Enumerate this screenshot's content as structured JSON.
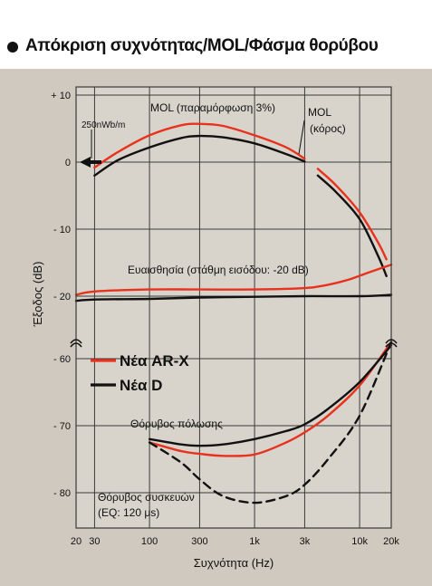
{
  "header": {
    "title": "Απόκριση συχνότητας/MOL/Φάσμα θορύβου"
  },
  "colors": {
    "panel_background": "#cfc9bf",
    "plot_background": "#d8d4cb",
    "grid": "#3a3a3a",
    "series_red": "#e8321e",
    "series_black": "#111111",
    "dashed_black": "#111111"
  },
  "chart_data": {
    "type": "line",
    "x_scale": "log",
    "xlabel": "Συχνότητα (Hz)",
    "ylabel": "Έξοδος (dB)",
    "x_ticks": [
      {
        "value": 20,
        "label": "20"
      },
      {
        "value": 30,
        "label": "30"
      },
      {
        "value": 100,
        "label": "100"
      },
      {
        "value": 300,
        "label": "300"
      },
      {
        "value": 1000,
        "label": "1k"
      },
      {
        "value": 3000,
        "label": "3k"
      },
      {
        "value": 10000,
        "label": "10k"
      },
      {
        "value": 20000,
        "label": "20k"
      }
    ],
    "xlim": [
      20,
      20000
    ],
    "y_axis_segments": [
      {
        "range": [
          -22,
          12
        ],
        "ticks": [
          {
            "value": 10,
            "label": "+ 10"
          },
          {
            "value": 0,
            "label": "0"
          },
          {
            "value": -10,
            "label": "- 10"
          },
          {
            "value": -20,
            "label": "- 20"
          }
        ]
      },
      {
        "range": [
          -85,
          -55
        ],
        "ticks": [
          {
            "value": -60,
            "label": "- 60"
          },
          {
            "value": -70,
            "label": "- 70"
          },
          {
            "value": -80,
            "label": "- 80"
          }
        ]
      }
    ],
    "grid": true,
    "legend": {
      "position": "middle-left",
      "entries": [
        {
          "label": "Νέα AR-X",
          "color": "#e8321e"
        },
        {
          "label": "Νέα D",
          "color": "#111111"
        }
      ]
    },
    "series": [
      {
        "name": "Νέα AR-X",
        "role": "MOL (παραμόρφωση 3%)",
        "color": "#e8321e",
        "dash": false,
        "points": [
          [
            30,
            -0.8
          ],
          [
            50,
            1.5
          ],
          [
            100,
            4.0
          ],
          [
            200,
            5.5
          ],
          [
            300,
            5.7
          ],
          [
            500,
            5.4
          ],
          [
            1000,
            4.0
          ],
          [
            2000,
            2.2
          ],
          [
            3000,
            0.5
          ]
        ]
      },
      {
        "name": "Νέα D",
        "role": "MOL (παραμόρφωση 3%)",
        "color": "#111111",
        "dash": false,
        "points": [
          [
            30,
            -2.0
          ],
          [
            50,
            0.3
          ],
          [
            100,
            2.2
          ],
          [
            200,
            3.6
          ],
          [
            300,
            3.9
          ],
          [
            500,
            3.7
          ],
          [
            1000,
            2.8
          ],
          [
            2000,
            1.2
          ],
          [
            3000,
            0.1
          ]
        ]
      },
      {
        "name": "Νέα AR-X",
        "role": "MOL (κόρος)",
        "color": "#e8321e",
        "dash": false,
        "points": [
          [
            4000,
            -1.0
          ],
          [
            6000,
            -3.5
          ],
          [
            10000,
            -7.5
          ],
          [
            15000,
            -12.0
          ],
          [
            18000,
            -14.5
          ]
        ]
      },
      {
        "name": "Νέα D",
        "role": "MOL (κόρος)",
        "color": "#111111",
        "dash": false,
        "points": [
          [
            4000,
            -2.0
          ],
          [
            6000,
            -4.5
          ],
          [
            10000,
            -8.5
          ],
          [
            15000,
            -14.0
          ],
          [
            18000,
            -17.0
          ]
        ]
      },
      {
        "name": "Νέα AR-X",
        "role": "Ευαισθησία",
        "color": "#e8321e",
        "dash": false,
        "points": [
          [
            20,
            -19.8
          ],
          [
            30,
            -19.3
          ],
          [
            100,
            -19.0
          ],
          [
            300,
            -19.0
          ],
          [
            1000,
            -19.0
          ],
          [
            3000,
            -18.8
          ],
          [
            5000,
            -18.3
          ],
          [
            8000,
            -17.5
          ],
          [
            12000,
            -16.5
          ],
          [
            20000,
            -15.3
          ]
        ]
      },
      {
        "name": "Νέα D",
        "role": "Ευαισθησία",
        "color": "#111111",
        "dash": false,
        "points": [
          [
            20,
            -20.7
          ],
          [
            30,
            -20.5
          ],
          [
            100,
            -20.4
          ],
          [
            300,
            -20.2
          ],
          [
            1000,
            -20.1
          ],
          [
            3000,
            -20.0
          ],
          [
            10000,
            -20.0
          ],
          [
            20000,
            -19.8
          ]
        ]
      },
      {
        "name": "Νέα AR-X",
        "role": "Θόρυβος πόλωσης",
        "color": "#e8321e",
        "dash": false,
        "points": [
          [
            100,
            -72.5
          ],
          [
            200,
            -73.8
          ],
          [
            300,
            -74.2
          ],
          [
            500,
            -74.5
          ],
          [
            1000,
            -74.3
          ],
          [
            2000,
            -72.5
          ],
          [
            3000,
            -71.0
          ],
          [
            5000,
            -68.5
          ],
          [
            10000,
            -64.0
          ],
          [
            20000,
            -57.5
          ]
        ]
      },
      {
        "name": "Νέα D",
        "role": "Θόρυβος πόλωσης",
        "color": "#111111",
        "dash": false,
        "points": [
          [
            100,
            -72.0
          ],
          [
            200,
            -72.8
          ],
          [
            300,
            -73.0
          ],
          [
            500,
            -72.8
          ],
          [
            1000,
            -72.0
          ],
          [
            2000,
            -70.8
          ],
          [
            3000,
            -69.8
          ],
          [
            5000,
            -67.5
          ],
          [
            10000,
            -63.5
          ],
          [
            20000,
            -58.0
          ]
        ]
      },
      {
        "name": "Θόρυβος συσκευών",
        "role": "Θόρυβος συσκευών",
        "color": "#111111",
        "dash": true,
        "points": [
          [
            100,
            -72.5
          ],
          [
            200,
            -75.5
          ],
          [
            300,
            -78.0
          ],
          [
            500,
            -80.5
          ],
          [
            1000,
            -81.5
          ],
          [
            2000,
            -80.5
          ],
          [
            3000,
            -78.8
          ],
          [
            5000,
            -75.0
          ],
          [
            10000,
            -68.5
          ],
          [
            20000,
            -57.5
          ]
        ]
      }
    ],
    "annotations": [
      {
        "text": "MOL (παραμόρφωση 3%)"
      },
      {
        "text": "MOL"
      },
      {
        "text": "(κόρος)"
      },
      {
        "text": "250nWb/m"
      },
      {
        "text": "Ευαισθησία (στάθμη εισόδου: -20 dB)"
      },
      {
        "text": "Θόρυβος πόλωσης"
      },
      {
        "text": "Θόρυβος συσκευών"
      },
      {
        "text": "(EQ: 120 μs)"
      }
    ]
  }
}
